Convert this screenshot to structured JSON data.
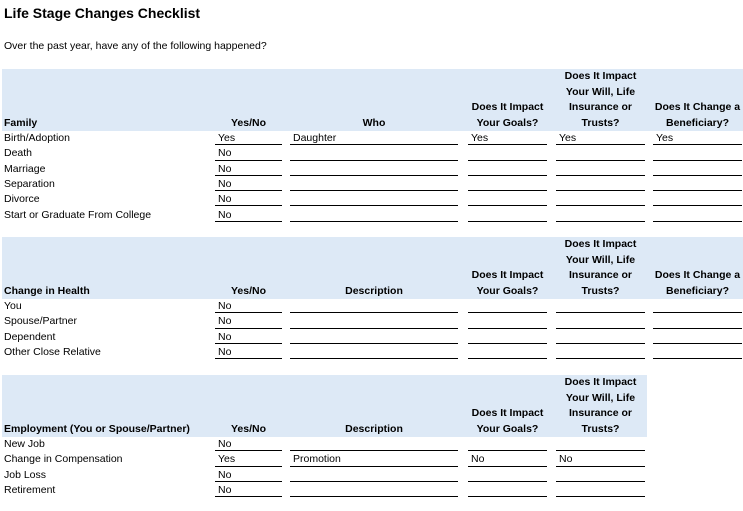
{
  "title": "Life Stage Changes Checklist",
  "intro": "Over the past year, have any of the following happened?",
  "sections": [
    {
      "headers": [
        "Family",
        "Yes/No",
        "Who",
        "Does It Impact Your Goals?",
        "Does It Impact Your Will, Life Insurance or Trusts?",
        "Does It Change a Beneficiary?"
      ],
      "rows": [
        {
          "label": "Birth/Adoption",
          "values": [
            "Yes",
            "Daughter",
            "Yes",
            "Yes",
            "Yes"
          ]
        },
        {
          "label": "Death",
          "values": [
            "No",
            "",
            "",
            "",
            ""
          ]
        },
        {
          "label": "Marriage",
          "values": [
            "No",
            "",
            "",
            "",
            ""
          ]
        },
        {
          "label": "Separation",
          "values": [
            "No",
            "",
            "",
            "",
            ""
          ]
        },
        {
          "label": "Divorce",
          "values": [
            "No",
            "",
            "",
            "",
            ""
          ]
        },
        {
          "label": "Start or Graduate From College",
          "values": [
            "No",
            "",
            "",
            "",
            ""
          ]
        }
      ]
    },
    {
      "headers": [
        "Change in Health",
        "Yes/No",
        "Description",
        "Does It Impact Your Goals?",
        "Does It Impact Your Will, Life Insurance or Trusts?",
        "Does It Change a Beneficiary?"
      ],
      "rows": [
        {
          "label": "You",
          "values": [
            "No",
            "",
            "",
            "",
            ""
          ]
        },
        {
          "label": "Spouse/Partner",
          "values": [
            "No",
            "",
            "",
            "",
            ""
          ]
        },
        {
          "label": "Dependent",
          "values": [
            "No",
            "",
            "",
            "",
            ""
          ]
        },
        {
          "label": "Other Close Relative",
          "values": [
            "No",
            "",
            "",
            "",
            ""
          ]
        }
      ]
    },
    {
      "headers": [
        "Employment (You or Spouse/Partner)",
        "Yes/No",
        "Description",
        "Does It Impact Your Goals?",
        "Does It Impact Your Will, Life Insurance or Trusts?"
      ],
      "rows": [
        {
          "label": "New Job",
          "values": [
            "No",
            "",
            "",
            ""
          ]
        },
        {
          "label": "Change in Compensation",
          "values": [
            "Yes",
            "Promotion",
            "No",
            "No"
          ]
        },
        {
          "label": "Job Loss",
          "values": [
            "No",
            "",
            "",
            ""
          ]
        },
        {
          "label": "Retirement",
          "values": [
            "No",
            "",
            "",
            ""
          ]
        }
      ]
    }
  ]
}
